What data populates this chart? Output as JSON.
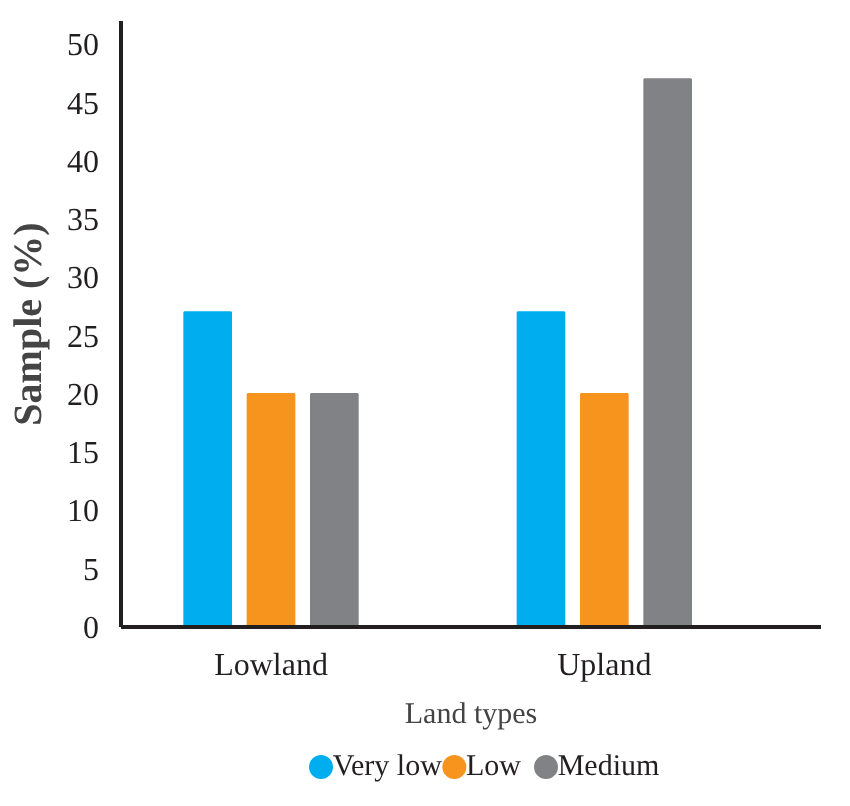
{
  "chart_data": {
    "type": "bar",
    "xlabel": "Land types",
    "ylabel": "Sample (%)",
    "categories": [
      "Lowland",
      "Upland"
    ],
    "series": [
      {
        "name": "Very low",
        "color": "#00aeef",
        "values": [
          27,
          27
        ]
      },
      {
        "name": "Low",
        "color": "#f7941d",
        "values": [
          20,
          20
        ]
      },
      {
        "name": "Medium",
        "color": "#808285",
        "values": [
          20,
          47
        ]
      }
    ],
    "ylim": [
      0,
      52
    ],
    "yticks": [
      0,
      5,
      10,
      15,
      20,
      25,
      30,
      35,
      40,
      45,
      50
    ],
    "grid": false,
    "legend": "bottom"
  }
}
